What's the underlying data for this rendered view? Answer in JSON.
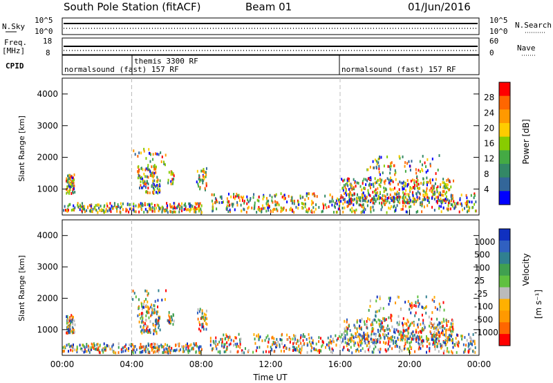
{
  "header": {
    "station": "South Pole Station (fitACF)",
    "beam": "Beam 01",
    "date": "01/Jun/2016"
  },
  "params": {
    "nsky_label": "N.Sky",
    "nsky_ticks": [
      "10^5",
      "10^0"
    ],
    "nsearch_label": "N.Search",
    "nsearch_ticks": [
      "10^5",
      "10^0"
    ],
    "freq_label": "Freq.",
    "freq_unit": "[MHz]",
    "freq_ticks": [
      "18",
      "8"
    ],
    "nave_label": "Nave",
    "nave_ticks": [
      "60",
      "0"
    ],
    "cpid_label": "CPID",
    "cpid_segments": [
      {
        "label": "normalsound (fast) 157 RF",
        "start_hour": 0
      },
      {
        "label": "themis 3300 RF",
        "start_hour": 4
      },
      {
        "label": "normalsound (fast) 157 RF",
        "start_hour": 16
      }
    ]
  },
  "chart_data": [
    {
      "type": "heatmap",
      "title": "Power",
      "ylabel": "Slant Range [km]",
      "xlabel": "",
      "xlim_hours": [
        0,
        24
      ],
      "ylim": [
        180,
        4500
      ],
      "yticks": [
        1000,
        2000,
        3000,
        4000
      ],
      "colorbar": {
        "label": "Power [dB]",
        "ticks": [
          "28",
          "24",
          "20",
          "16",
          "12",
          "8",
          "4"
        ],
        "colors": [
          "#ff0000",
          "#ff6600",
          "#ff9900",
          "#ffcc00",
          "#88cc00",
          "#44aa44",
          "#338866",
          "#336699",
          "#0000ff"
        ]
      },
      "dashed_vlines_hours": [
        4,
        16
      ]
    },
    {
      "type": "heatmap",
      "title": "Velocity",
      "ylabel": "Slant Range [km]",
      "xlabel": "Time UT",
      "xlim_hours": [
        0,
        24
      ],
      "ylim": [
        180,
        4500
      ],
      "yticks": [
        1000,
        2000,
        3000,
        4000
      ],
      "xticks": [
        "00:00",
        "04:00",
        "08:00",
        "12:00",
        "16:00",
        "20:00",
        "00:00"
      ],
      "colorbar": {
        "label": "Velocity",
        "unit": "[m s⁻¹]",
        "ticks": [
          "1000",
          "500",
          "100",
          "25",
          "-25",
          "-100",
          "-500",
          "-1000"
        ],
        "colors": [
          "#1030c0",
          "#3060c0",
          "#308090",
          "#40a050",
          "#60c040",
          "#bbbbbb",
          "#ffb000",
          "#ff9900",
          "#ff6600",
          "#ff0000"
        ]
      },
      "dashed_vlines_hours": [
        4,
        16
      ]
    }
  ]
}
